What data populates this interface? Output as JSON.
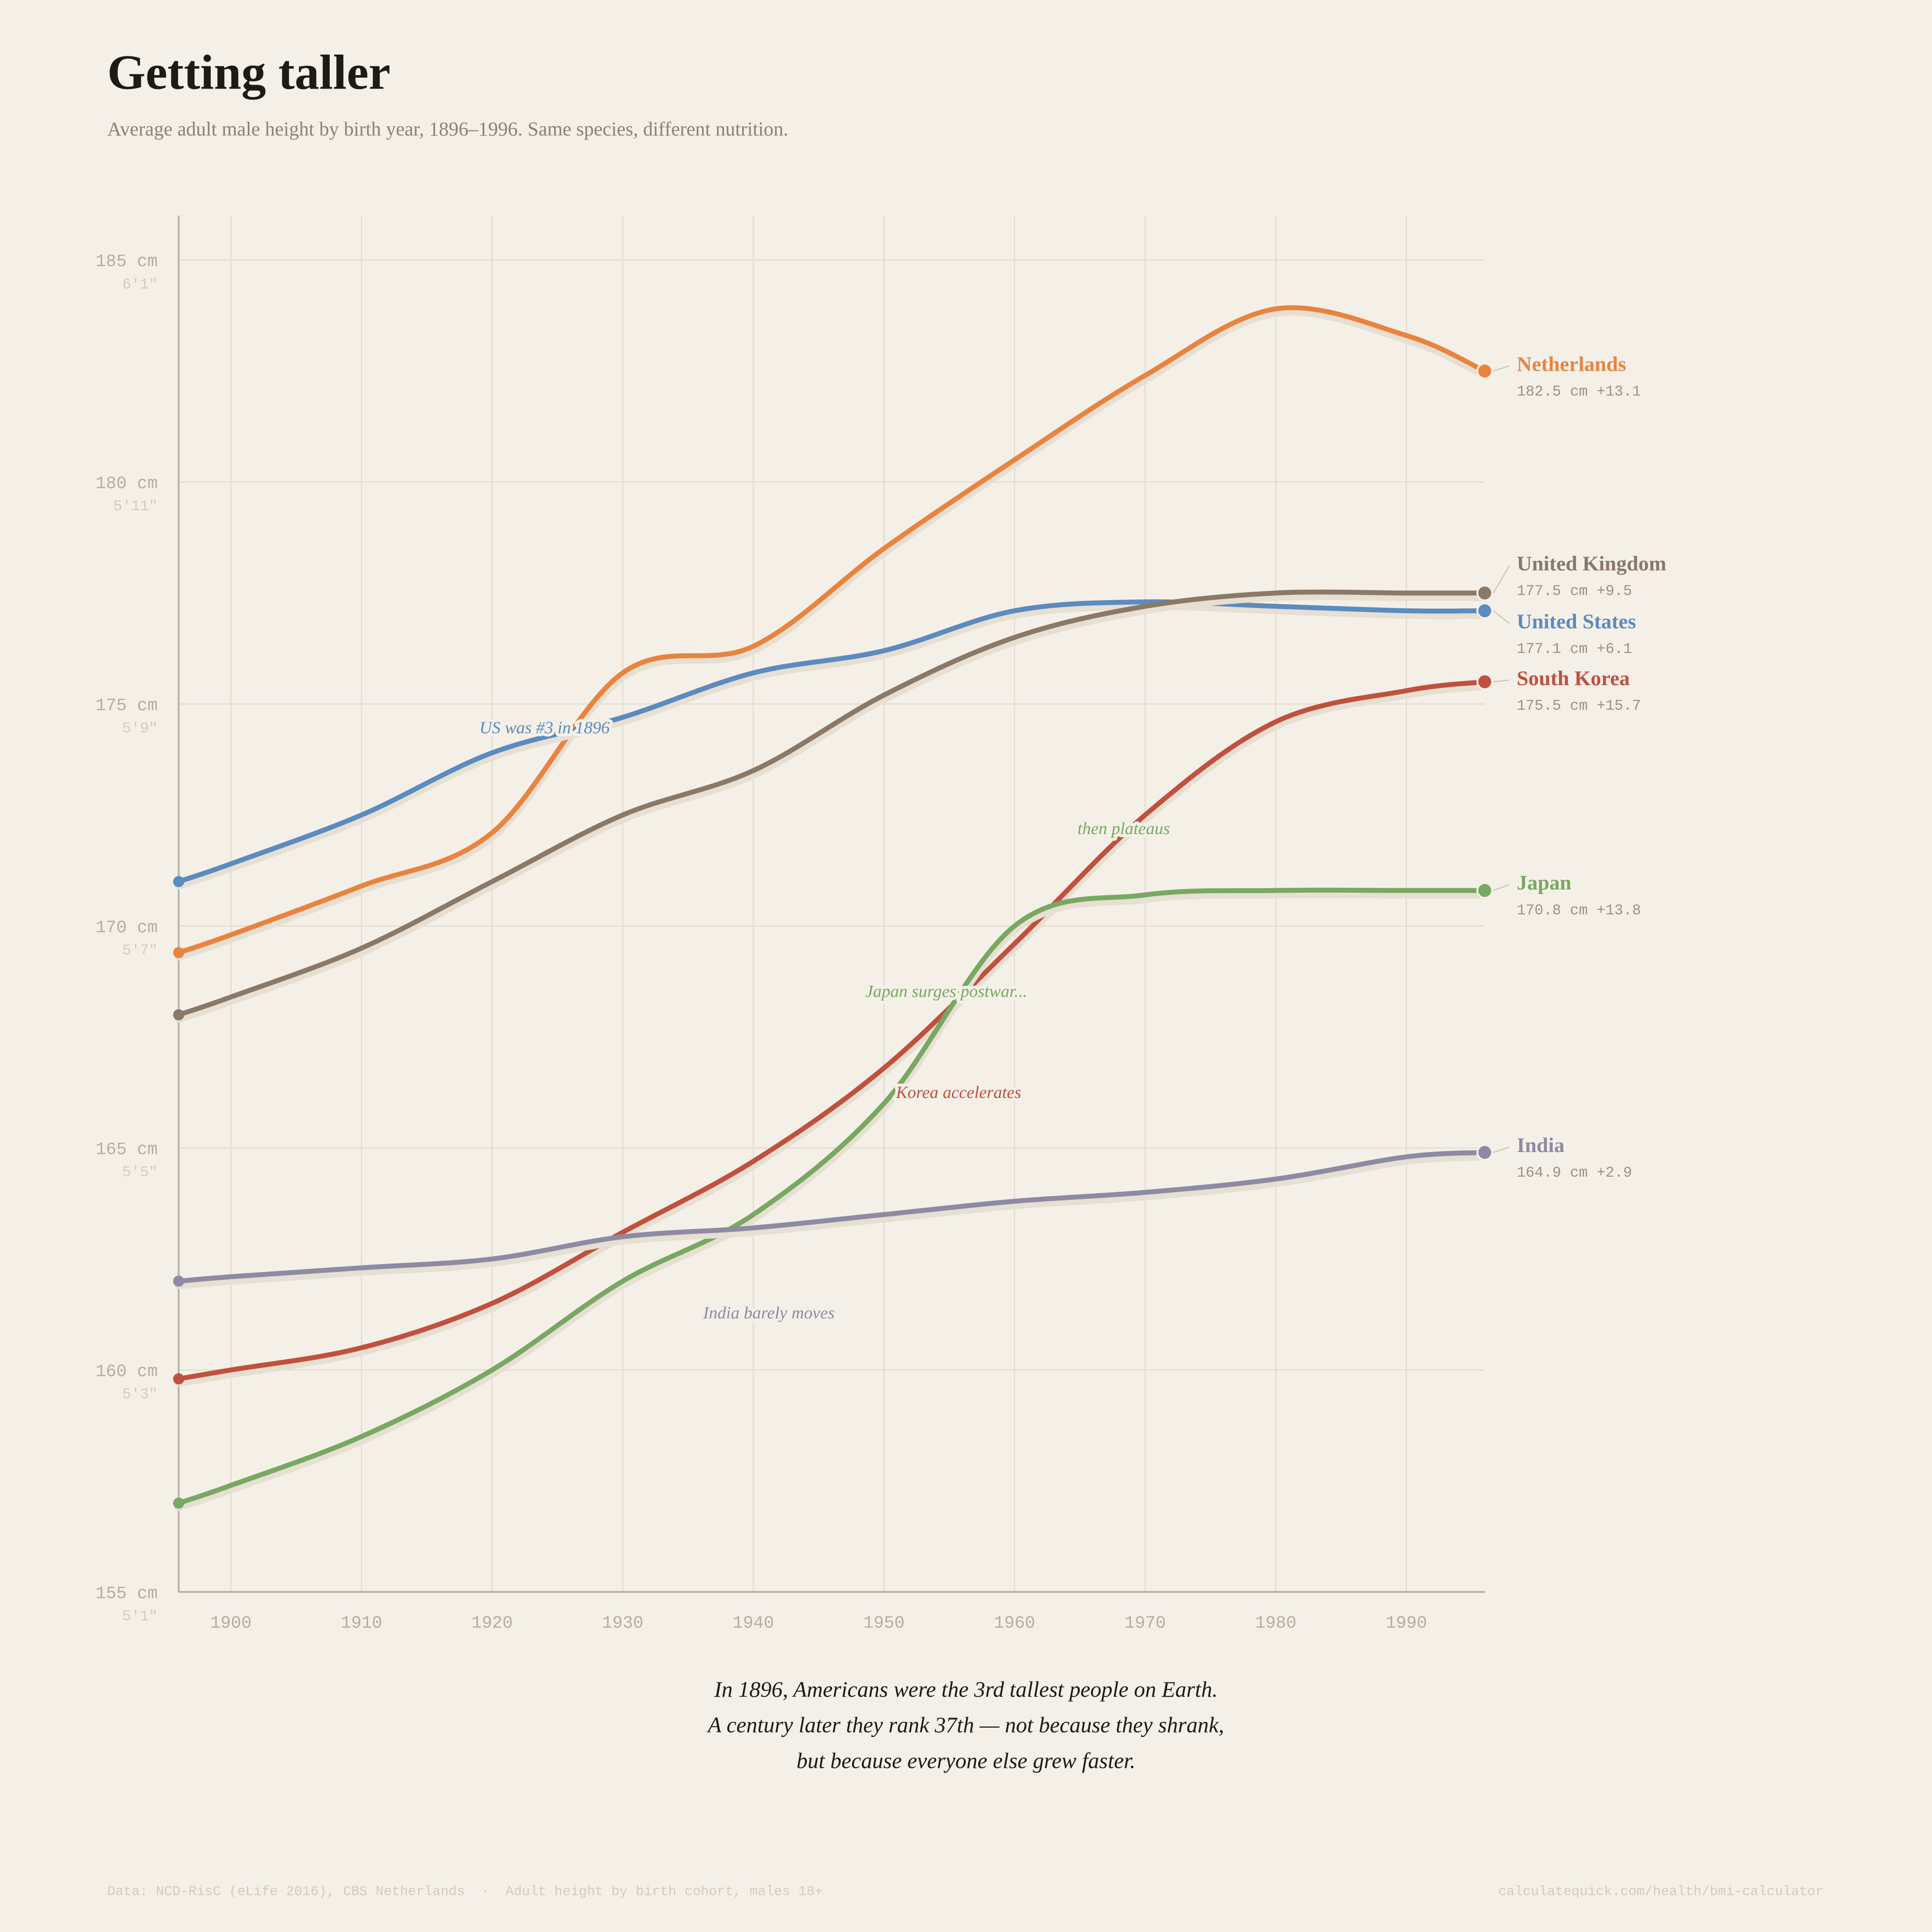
{
  "chart_data": {
    "type": "line",
    "title": "Getting taller",
    "subtitle": "Average adult male height by birth year, 1896–1996. Same species, different nutrition.",
    "x": [
      1896,
      1900,
      1910,
      1920,
      1930,
      1940,
      1950,
      1960,
      1970,
      1980,
      1990,
      1996
    ],
    "xlim": [
      1896,
      1996
    ],
    "xticks": [
      1900,
      1910,
      1920,
      1930,
      1940,
      1950,
      1960,
      1970,
      1980,
      1990
    ],
    "ylim": [
      155,
      186
    ],
    "yticks": [
      {
        "value": 155,
        "label": "155 cm"
      },
      {
        "value": 160,
        "label": "160 cm"
      },
      {
        "value": 165,
        "label": "165 cm"
      },
      {
        "value": 170,
        "label": "170 cm"
      },
      {
        "value": 175,
        "label": "175 cm"
      },
      {
        "value": 180,
        "label": "180 cm"
      },
      {
        "value": 185,
        "label": "185 cm"
      }
    ],
    "ytick_sublabels": [
      "5'1\"",
      "5'3\"",
      "5'5\"",
      "5'7\"",
      "5'9\"",
      "5'11\"",
      "6'1\""
    ],
    "grid": true,
    "series": [
      {
        "name": "Netherlands",
        "color": "#e8843f",
        "end_label": "182.5 cm  +13.1",
        "values": [
          169.4,
          169.8,
          170.9,
          172.1,
          175.7,
          176.3,
          178.5,
          180.5,
          182.4,
          183.9,
          183.3,
          182.5
        ]
      },
      {
        "name": "United States",
        "color": "#5b8bbf",
        "end_label": "177.1 cm  +6.1",
        "values": [
          171.0,
          171.4,
          172.5,
          173.9,
          174.7,
          175.7,
          176.2,
          177.1,
          177.3,
          177.2,
          177.1,
          177.1
        ]
      },
      {
        "name": "United Kingdom",
        "color": "#8a7968",
        "end_label": "177.5 cm  +9.5",
        "values": [
          168.0,
          168.4,
          169.5,
          171.0,
          172.5,
          173.5,
          175.2,
          176.5,
          177.2,
          177.5,
          177.5,
          177.5
        ]
      },
      {
        "name": "South Korea",
        "color": "#c0513e",
        "end_label": "175.5 cm  +15.7",
        "values": [
          159.8,
          160.0,
          160.5,
          161.5,
          163.1,
          164.7,
          166.8,
          169.6,
          172.5,
          174.6,
          175.3,
          175.5
        ]
      },
      {
        "name": "Japan",
        "color": "#78a862",
        "end_label": "170.8 cm  +13.8",
        "values": [
          157.0,
          157.4,
          158.5,
          160.0,
          162.0,
          163.5,
          166.0,
          170.0,
          170.7,
          170.8,
          170.8,
          170.8
        ]
      },
      {
        "name": "India",
        "color": "#8e8aa3",
        "end_label": "164.9 cm  +2.9",
        "values": [
          162.0,
          162.1,
          162.3,
          162.5,
          163.0,
          163.2,
          163.5,
          163.8,
          164.0,
          164.3,
          164.8,
          164.9
        ]
      }
    ],
    "annotations": [
      {
        "text": "US was #3 in 1896",
        "color": "#5b8bbf"
      },
      {
        "text": "then plateaus",
        "color": "#78a862"
      },
      {
        "text": "Japan surges postwar...",
        "color": "#78a862"
      },
      {
        "text": "Korea accelerates",
        "color": "#c0513e"
      },
      {
        "text": "India barely moves",
        "color": "#8e8aa3"
      }
    ],
    "caption": [
      "In 1896, Americans were the 3rd tallest people on Earth.",
      "A century later they rank 37th — not because they shrank,",
      "but because everyone else grew faster."
    ],
    "source": "Data: NCD-RisC (eLife 2016), CBS Netherlands  ·  Adult height by birth cohort, males 18+",
    "credit": "calculatequick.com/health/bmi-calculator"
  }
}
